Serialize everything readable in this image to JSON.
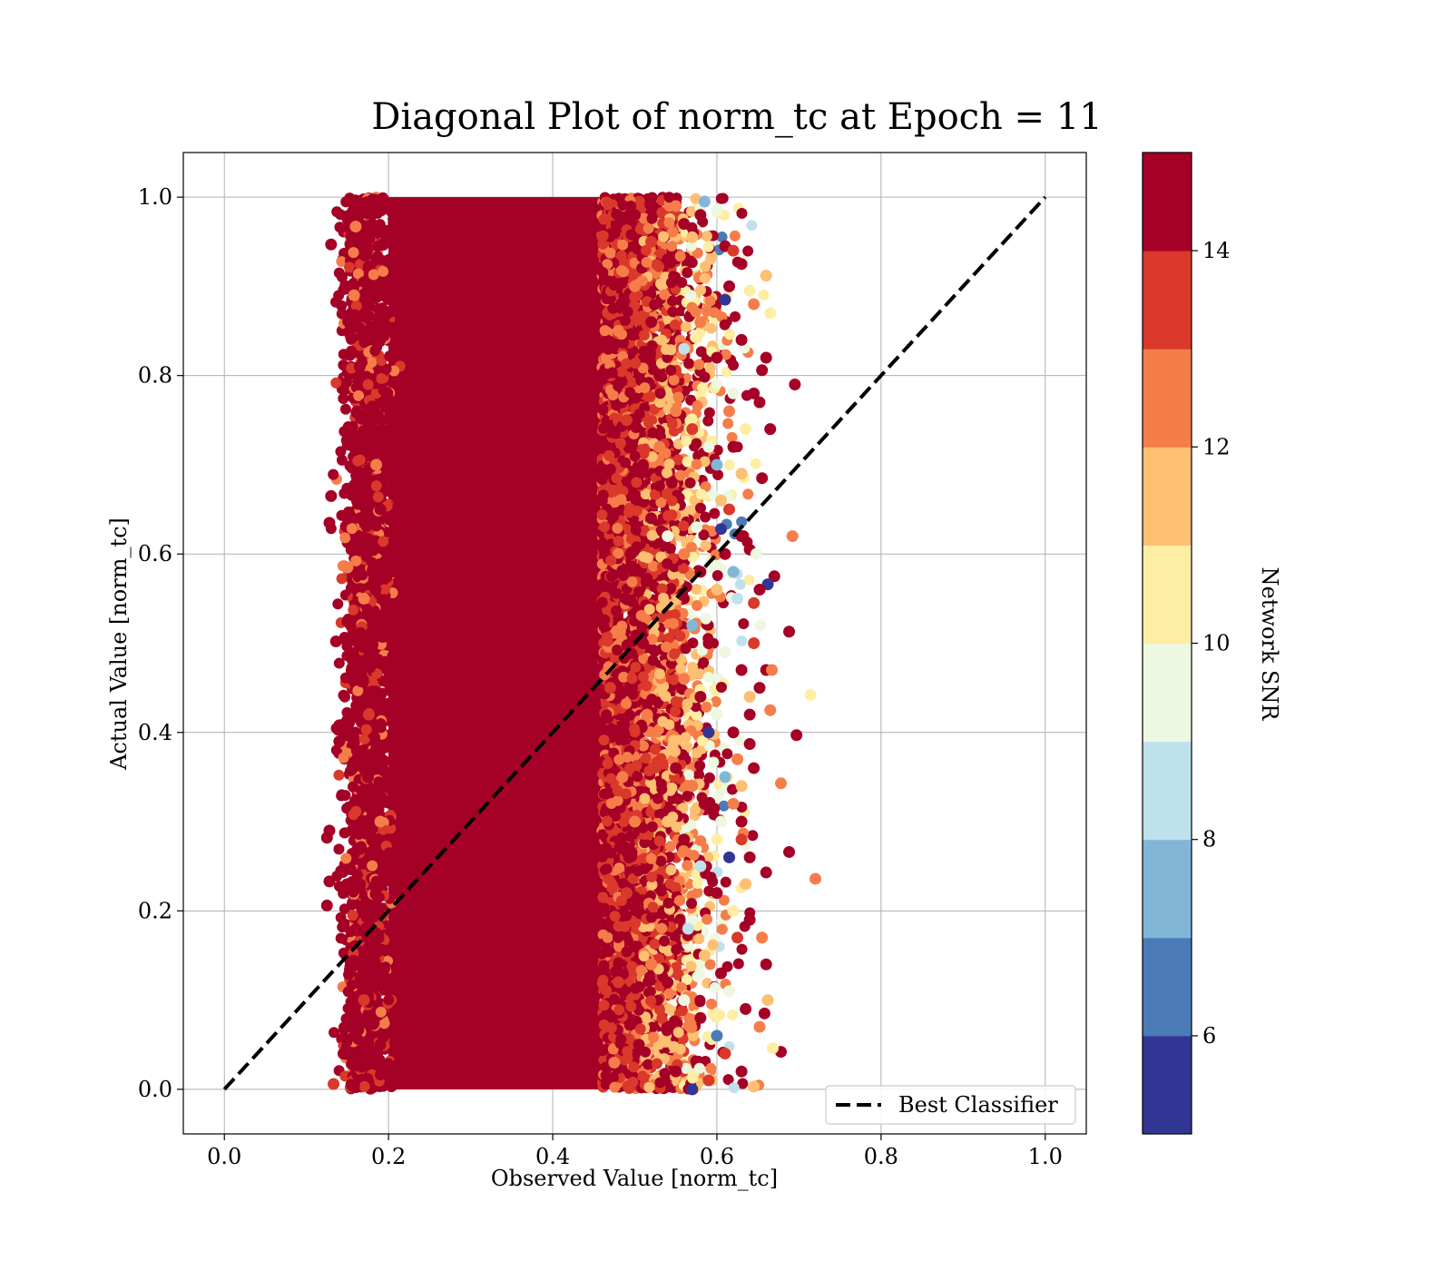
{
  "chart_data": {
    "type": "scatter",
    "title": "Diagonal Plot of norm_tc at Epoch = 11",
    "xlabel": "Observed Value [norm_tc]",
    "ylabel": "Actual Value [norm_tc]",
    "xlim": [
      -0.05,
      1.05
    ],
    "ylim": [
      -0.05,
      1.05
    ],
    "xticks": [
      "0.0",
      "0.2",
      "0.4",
      "0.6",
      "0.8",
      "1.0"
    ],
    "yticks": [
      "0.0",
      "0.2",
      "0.4",
      "0.6",
      "0.8",
      "1.0"
    ],
    "grid": true,
    "legend": {
      "placement": "lower-right",
      "entries": [
        "Best Classifier"
      ]
    },
    "reference_line": {
      "name": "Best Classifier",
      "style": "dashed",
      "color": "#000000",
      "x": [
        0.0,
        1.0
      ],
      "y": [
        0.0,
        1.0
      ]
    },
    "colorbar": {
      "label": "Network SNR",
      "range": [
        5,
        15
      ],
      "ticks": [
        "6",
        "8",
        "10",
        "12",
        "14"
      ],
      "tick_values": [
        6,
        8,
        10,
        12,
        14
      ],
      "colors": [
        "#313695",
        "#4575b4",
        "#74add1",
        "#abd9e9",
        "#e0f3f8",
        "#ffffbf",
        "#fee090",
        "#fdae61",
        "#f46d43",
        "#d73027",
        "#a50026"
      ],
      "band_colors": [
        "#313695",
        "#4a7bb7",
        "#82b6d7",
        "#bfe1ec",
        "#eef7e0",
        "#fdeea3",
        "#fdbf72",
        "#f57d4a",
        "#da382b",
        "#a50026"
      ]
    },
    "dense_region": {
      "x": [
        0.2,
        0.48
      ],
      "y": [
        0.0,
        1.0
      ],
      "color": "#a50026"
    },
    "points": [
      [
        0.13,
        0.947,
        15
      ],
      [
        0.16,
        0.967,
        12.5
      ],
      [
        0.175,
        0.96,
        14.5
      ],
      [
        0.165,
        0.81,
        15
      ],
      [
        0.158,
        0.89,
        12
      ],
      [
        0.13,
        0.665,
        15
      ],
      [
        0.128,
        0.635,
        15
      ],
      [
        0.15,
        0.585,
        12
      ],
      [
        0.136,
        0.502,
        15
      ],
      [
        0.14,
        0.408,
        15
      ],
      [
        0.14,
        0.39,
        15
      ],
      [
        0.128,
        0.29,
        15
      ],
      [
        0.125,
        0.282,
        15
      ],
      [
        0.128,
        0.233,
        15
      ],
      [
        0.125,
        0.206,
        15
      ],
      [
        0.133,
        0.006,
        13
      ],
      [
        0.145,
        0.04,
        15
      ],
      [
        0.158,
        0.003,
        15
      ],
      [
        0.18,
        0.745,
        14
      ],
      [
        0.185,
        0.7,
        12
      ],
      [
        0.19,
        0.65,
        15
      ],
      [
        0.17,
        0.55,
        12.5
      ],
      [
        0.18,
        0.48,
        15
      ],
      [
        0.175,
        0.35,
        14
      ],
      [
        0.19,
        0.3,
        12
      ],
      [
        0.18,
        0.16,
        15
      ],
      [
        0.17,
        0.1,
        13
      ],
      [
        0.19,
        0.05,
        15
      ],
      [
        0.184,
        0.56,
        15
      ],
      [
        0.176,
        0.42,
        13.5
      ],
      [
        0.5,
        0.98,
        15
      ],
      [
        0.52,
        0.95,
        13
      ],
      [
        0.54,
        0.93,
        15
      ],
      [
        0.55,
        0.99,
        12
      ],
      [
        0.56,
        0.97,
        15
      ],
      [
        0.57,
        0.955,
        11
      ],
      [
        0.58,
        0.98,
        14
      ],
      [
        0.585,
        0.995,
        7
      ],
      [
        0.6,
        0.985,
        9
      ],
      [
        0.61,
        0.945,
        15
      ],
      [
        0.615,
        0.9,
        15
      ],
      [
        0.62,
        0.94,
        13
      ],
      [
        0.63,
        0.925,
        14.5
      ],
      [
        0.64,
        0.895,
        10
      ],
      [
        0.645,
        0.88,
        12
      ],
      [
        0.63,
        0.84,
        15
      ],
      [
        0.61,
        0.885,
        5.5
      ],
      [
        0.66,
        0.912,
        11
      ],
      [
        0.665,
        0.87,
        10
      ],
      [
        0.66,
        0.82,
        15
      ],
      [
        0.655,
        0.806,
        15
      ],
      [
        0.652,
        0.77,
        15
      ],
      [
        0.645,
        0.78,
        15
      ],
      [
        0.695,
        0.79,
        15
      ],
      [
        0.665,
        0.74,
        15
      ],
      [
        0.655,
        0.685,
        15
      ],
      [
        0.63,
        0.69,
        11
      ],
      [
        0.6,
        0.7,
        7
      ],
      [
        0.59,
        0.72,
        9
      ],
      [
        0.57,
        0.74,
        13
      ],
      [
        0.55,
        0.76,
        12
      ],
      [
        0.53,
        0.8,
        15
      ],
      [
        0.52,
        0.86,
        14
      ],
      [
        0.56,
        0.83,
        8
      ],
      [
        0.58,
        0.86,
        12
      ],
      [
        0.6,
        0.82,
        15
      ],
      [
        0.62,
        0.78,
        9
      ],
      [
        0.615,
        0.65,
        13
      ],
      [
        0.63,
        0.62,
        14.5
      ],
      [
        0.605,
        0.628,
        5.5
      ],
      [
        0.61,
        0.6,
        15
      ],
      [
        0.64,
        0.605,
        15
      ],
      [
        0.648,
        0.6,
        9
      ],
      [
        0.67,
        0.575,
        15
      ],
      [
        0.662,
        0.566,
        5.5
      ],
      [
        0.652,
        0.56,
        15
      ],
      [
        0.645,
        0.545,
        13
      ],
      [
        0.625,
        0.55,
        8
      ],
      [
        0.6,
        0.56,
        11
      ],
      [
        0.58,
        0.58,
        15
      ],
      [
        0.56,
        0.6,
        12
      ],
      [
        0.54,
        0.62,
        9
      ],
      [
        0.52,
        0.64,
        15
      ],
      [
        0.692,
        0.62,
        12.5
      ],
      [
        0.688,
        0.513,
        15
      ],
      [
        0.653,
        0.52,
        9
      ],
      [
        0.645,
        0.5,
        13
      ],
      [
        0.66,
        0.47,
        15
      ],
      [
        0.667,
        0.47,
        12.5
      ],
      [
        0.652,
        0.45,
        15
      ],
      [
        0.64,
        0.44,
        11
      ],
      [
        0.665,
        0.425,
        12.5
      ],
      [
        0.714,
        0.442,
        10.5
      ],
      [
        0.697,
        0.397,
        15
      ],
      [
        0.64,
        0.42,
        15
      ],
      [
        0.63,
        0.47,
        15
      ],
      [
        0.61,
        0.49,
        9
      ],
      [
        0.59,
        0.5,
        15
      ],
      [
        0.57,
        0.52,
        7
      ],
      [
        0.56,
        0.46,
        12
      ],
      [
        0.58,
        0.44,
        14
      ],
      [
        0.6,
        0.42,
        9
      ],
      [
        0.62,
        0.4,
        15
      ],
      [
        0.64,
        0.387,
        14
      ],
      [
        0.645,
        0.36,
        15
      ],
      [
        0.625,
        0.37,
        12.5
      ],
      [
        0.63,
        0.34,
        11
      ],
      [
        0.678,
        0.343,
        12.5
      ],
      [
        0.688,
        0.266,
        15
      ],
      [
        0.72,
        0.236,
        12.5
      ],
      [
        0.66,
        0.243,
        15
      ],
      [
        0.64,
        0.26,
        15
      ],
      [
        0.63,
        0.28,
        13
      ],
      [
        0.615,
        0.26,
        5.5
      ],
      [
        0.605,
        0.3,
        9
      ],
      [
        0.585,
        0.32,
        15
      ],
      [
        0.57,
        0.34,
        12
      ],
      [
        0.55,
        0.36,
        15
      ],
      [
        0.54,
        0.3,
        11
      ],
      [
        0.56,
        0.28,
        14
      ],
      [
        0.58,
        0.25,
        8
      ],
      [
        0.6,
        0.22,
        15
      ],
      [
        0.62,
        0.2,
        10
      ],
      [
        0.64,
        0.19,
        15
      ],
      [
        0.655,
        0.17,
        12.5
      ],
      [
        0.66,
        0.14,
        14
      ],
      [
        0.658,
        0.085,
        15
      ],
      [
        0.662,
        0.1,
        11.5
      ],
      [
        0.652,
        0.07,
        12
      ],
      [
        0.678,
        0.042,
        15
      ],
      [
        0.668,
        0.046,
        10
      ],
      [
        0.645,
        0.003,
        11
      ],
      [
        0.63,
        0.02,
        15
      ],
      [
        0.61,
        0.04,
        13
      ],
      [
        0.6,
        0.06,
        6
      ],
      [
        0.58,
        0.08,
        15
      ],
      [
        0.56,
        0.1,
        9
      ],
      [
        0.54,
        0.12,
        15
      ],
      [
        0.52,
        0.14,
        12
      ],
      [
        0.5,
        0.16,
        15
      ],
      [
        0.55,
        0.02,
        15
      ],
      [
        0.57,
        0.0,
        5.5
      ],
      [
        0.59,
        0.01,
        13
      ],
      [
        0.565,
        0.18,
        8
      ],
      [
        0.585,
        0.15,
        11
      ],
      [
        0.605,
        0.13,
        15
      ],
      [
        0.59,
        0.4,
        5.5
      ],
      [
        0.575,
        0.63,
        9
      ],
      [
        0.545,
        0.68,
        15
      ],
      [
        0.53,
        0.72,
        12
      ],
      [
        0.51,
        0.7,
        15
      ],
      [
        0.5,
        0.9,
        12.5
      ],
      [
        0.51,
        0.5,
        14
      ],
      [
        0.5,
        0.3,
        12.5
      ],
      [
        0.505,
        0.05,
        14
      ],
      [
        0.49,
        0.22,
        13
      ],
      [
        0.515,
        0.42,
        12
      ],
      [
        0.495,
        0.6,
        14
      ],
      [
        0.49,
        0.75,
        13
      ],
      [
        0.48,
        0.85,
        12.5
      ],
      [
        0.485,
        0.35,
        12
      ],
      [
        0.48,
        0.12,
        13
      ],
      [
        0.46,
        0.66,
        14
      ],
      [
        0.47,
        0.45,
        13.5
      ],
      [
        0.465,
        0.27,
        14
      ],
      [
        0.455,
        0.92,
        14
      ],
      [
        0.475,
        0.03,
        12.5
      ],
      [
        0.62,
        0.72,
        15
      ],
      [
        0.635,
        0.74,
        10
      ],
      [
        0.615,
        0.76,
        12
      ],
      [
        0.605,
        0.66,
        11
      ],
      [
        0.62,
        0.58,
        7
      ],
      [
        0.61,
        0.35,
        7
      ],
      [
        0.62,
        0.32,
        12
      ],
      [
        0.63,
        0.3,
        15
      ],
      [
        0.635,
        0.23,
        11
      ],
      [
        0.625,
        0.17,
        13
      ],
      [
        0.615,
        0.11,
        9
      ],
      [
        0.635,
        0.09,
        15
      ],
      [
        0.6,
        0.28,
        10.5
      ]
    ]
  }
}
